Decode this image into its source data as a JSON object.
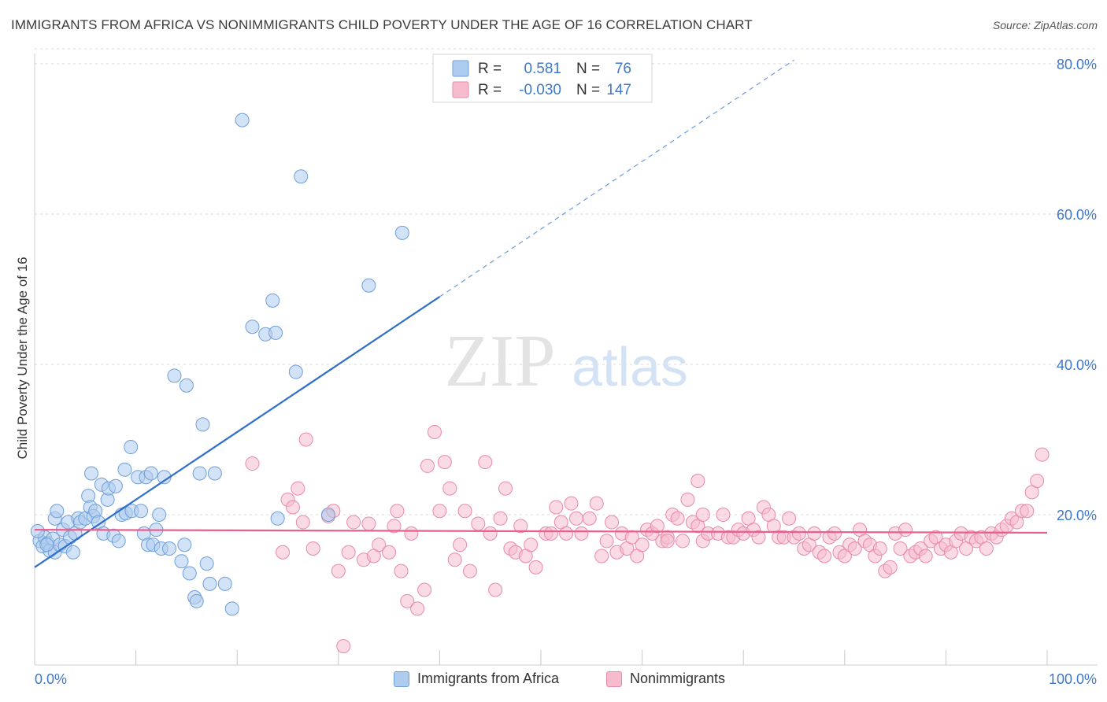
{
  "title": "IMMIGRANTS FROM AFRICA VS NONIMMIGRANTS CHILD POVERTY UNDER THE AGE OF 16 CORRELATION CHART",
  "source": "Source: ZipAtlas.com",
  "watermark": {
    "zip": "ZIP",
    "atlas": "atlas"
  },
  "legend": {
    "rows": [
      {
        "r_label": "R =",
        "r_value": "0.581",
        "n_label": "N =",
        "n_value": "76"
      },
      {
        "r_label": "R =",
        "r_value": "-0.030",
        "n_label": "N =",
        "n_value": "147"
      }
    ]
  },
  "bottom_legend": [
    "Immigrants from Africa",
    "Nonimmigrants"
  ],
  "colors": {
    "blue_fill": "#aeccf0",
    "blue_stroke": "#6f9fd6",
    "blue_line": "#2f6fcc",
    "pink_fill": "#f6bccd",
    "pink_stroke": "#e98aa8",
    "pink_line": "#e8608e",
    "tick_label": "#3f78c8",
    "grid": "#d8d8d8"
  },
  "chart_data": {
    "type": "scatter",
    "title": "IMMIGRANTS FROM AFRICA VS NONIMMIGRANTS CHILD POVERTY UNDER THE AGE OF 16 CORRELATION CHART",
    "xlabel": "",
    "ylabel": "Child Poverty Under the Age of 16",
    "xlim": [
      0,
      100
    ],
    "ylim": [
      0,
      85
    ],
    "x_tick_labels": [
      "0.0%",
      "100.0%"
    ],
    "y_ticks": [
      20,
      40,
      60,
      80
    ],
    "y_tick_labels": [
      "20.0%",
      "40.0%",
      "60.0%",
      "80.0%"
    ],
    "grid": "horizontal dashed",
    "legend_position": "top-center",
    "series": [
      {
        "name": "Immigrants from Africa",
        "color": "blue",
        "r": 0.581,
        "n": 76,
        "trend": {
          "x0": 0,
          "y0": 13.0,
          "x1": 40,
          "y1": 49.0,
          "dashed_to_x": 75
        },
        "points": [
          [
            0.5,
            16.5
          ],
          [
            0.8,
            15.8
          ],
          [
            1.0,
            17.0
          ],
          [
            1.3,
            16.2
          ],
          [
            1.5,
            15.2
          ],
          [
            1.8,
            16.8
          ],
          [
            2.0,
            15.0
          ],
          [
            2.0,
            19.5
          ],
          [
            2.2,
            20.5
          ],
          [
            2.5,
            16.0
          ],
          [
            2.8,
            18.0
          ],
          [
            3.0,
            15.8
          ],
          [
            3.3,
            19.0
          ],
          [
            3.5,
            17.0
          ],
          [
            3.8,
            15.0
          ],
          [
            4.0,
            17.5
          ],
          [
            4.3,
            19.5
          ],
          [
            4.5,
            19.0
          ],
          [
            5.0,
            19.5
          ],
          [
            5.3,
            22.5
          ],
          [
            5.5,
            21.0
          ],
          [
            5.6,
            25.5
          ],
          [
            5.8,
            19.8
          ],
          [
            6.0,
            20.5
          ],
          [
            6.3,
            19.0
          ],
          [
            6.6,
            24.0
          ],
          [
            6.8,
            17.5
          ],
          [
            7.2,
            22.0
          ],
          [
            7.3,
            23.5
          ],
          [
            7.8,
            17.2
          ],
          [
            8.0,
            23.8
          ],
          [
            8.3,
            16.5
          ],
          [
            8.6,
            20.0
          ],
          [
            8.9,
            26.0
          ],
          [
            9.0,
            20.2
          ],
          [
            9.5,
            29.0
          ],
          [
            9.6,
            20.5
          ],
          [
            10.2,
            25.0
          ],
          [
            10.5,
            20.5
          ],
          [
            10.8,
            17.5
          ],
          [
            11.0,
            25.0
          ],
          [
            11.2,
            16.0
          ],
          [
            11.5,
            25.5
          ],
          [
            11.7,
            16.0
          ],
          [
            12.0,
            18.0
          ],
          [
            12.3,
            20.0
          ],
          [
            12.5,
            15.5
          ],
          [
            12.8,
            25.0
          ],
          [
            13.3,
            15.5
          ],
          [
            13.8,
            38.5
          ],
          [
            14.5,
            13.8
          ],
          [
            14.8,
            16.0
          ],
          [
            15.0,
            37.2
          ],
          [
            15.3,
            12.2
          ],
          [
            15.8,
            9.0
          ],
          [
            16.0,
            8.5
          ],
          [
            16.3,
            25.5
          ],
          [
            16.6,
            32.0
          ],
          [
            17.0,
            13.5
          ],
          [
            17.3,
            10.8
          ],
          [
            17.8,
            25.5
          ],
          [
            18.8,
            10.8
          ],
          [
            19.5,
            7.5
          ],
          [
            20.5,
            72.5
          ],
          [
            21.5,
            45.0
          ],
          [
            22.8,
            44.0
          ],
          [
            23.5,
            48.5
          ],
          [
            23.8,
            44.2
          ],
          [
            24.0,
            19.5
          ],
          [
            25.8,
            39.0
          ],
          [
            26.3,
            65.0
          ],
          [
            33.0,
            50.5
          ],
          [
            36.3,
            57.5
          ],
          [
            1.2,
            16.0
          ],
          [
            0.3,
            17.8
          ],
          [
            29.0,
            20.0
          ]
        ]
      },
      {
        "name": "Nonimmigrants",
        "color": "pink",
        "r": -0.03,
        "n": 147,
        "trend": {
          "x0": 0,
          "y0": 18.0,
          "x1": 100,
          "y1": 17.6
        },
        "points": [
          [
            21.5,
            26.8
          ],
          [
            24.5,
            15.0
          ],
          [
            25.0,
            22.0
          ],
          [
            25.5,
            21.0
          ],
          [
            26.0,
            23.5
          ],
          [
            26.5,
            19.0
          ],
          [
            26.8,
            30.0
          ],
          [
            27.5,
            15.5
          ],
          [
            29.0,
            19.8
          ],
          [
            29.5,
            20.5
          ],
          [
            30.0,
            12.5
          ],
          [
            30.5,
            2.5
          ],
          [
            31.0,
            15.0
          ],
          [
            31.5,
            19.0
          ],
          [
            32.5,
            14.0
          ],
          [
            33.0,
            18.8
          ],
          [
            33.5,
            14.5
          ],
          [
            34.0,
            16.0
          ],
          [
            35.0,
            15.0
          ],
          [
            35.5,
            18.5
          ],
          [
            35.8,
            20.5
          ],
          [
            36.2,
            12.5
          ],
          [
            36.8,
            8.5
          ],
          [
            37.2,
            17.5
          ],
          [
            37.8,
            7.5
          ],
          [
            38.5,
            10.0
          ],
          [
            38.8,
            26.5
          ],
          [
            39.5,
            31.0
          ],
          [
            40.0,
            20.5
          ],
          [
            40.5,
            27.0
          ],
          [
            41.0,
            23.5
          ],
          [
            41.5,
            14.0
          ],
          [
            42.0,
            16.0
          ],
          [
            42.5,
            20.5
          ],
          [
            43.0,
            12.5
          ],
          [
            43.8,
            18.8
          ],
          [
            44.5,
            27.0
          ],
          [
            45.0,
            17.5
          ],
          [
            45.5,
            10.0
          ],
          [
            46.0,
            19.5
          ],
          [
            46.5,
            23.5
          ],
          [
            47.0,
            15.5
          ],
          [
            47.5,
            15.0
          ],
          [
            48.0,
            18.5
          ],
          [
            48.5,
            14.5
          ],
          [
            49.0,
            16.0
          ],
          [
            49.5,
            13.0
          ],
          [
            50.5,
            17.5
          ],
          [
            51.0,
            17.5
          ],
          [
            51.5,
            21.0
          ],
          [
            52.0,
            19.0
          ],
          [
            52.5,
            17.5
          ],
          [
            53.0,
            21.5
          ],
          [
            53.5,
            19.5
          ],
          [
            54.0,
            17.5
          ],
          [
            54.8,
            19.5
          ],
          [
            55.5,
            21.5
          ],
          [
            56.0,
            14.5
          ],
          [
            56.5,
            16.5
          ],
          [
            57.0,
            19.0
          ],
          [
            57.5,
            15.0
          ],
          [
            58.0,
            17.5
          ],
          [
            58.5,
            15.5
          ],
          [
            59.0,
            17.0
          ],
          [
            59.5,
            14.5
          ],
          [
            60.0,
            16.0
          ],
          [
            60.5,
            18.0
          ],
          [
            61.0,
            17.5
          ],
          [
            61.5,
            18.5
          ],
          [
            62.0,
            16.5
          ],
          [
            62.5,
            17.0
          ],
          [
            63.0,
            20.0
          ],
          [
            63.5,
            19.5
          ],
          [
            64.0,
            16.5
          ],
          [
            64.5,
            22.0
          ],
          [
            65.0,
            19.0
          ],
          [
            65.5,
            18.5
          ],
          [
            66.0,
            16.5
          ],
          [
            66.5,
            17.5
          ],
          [
            67.5,
            17.5
          ],
          [
            68.0,
            20.0
          ],
          [
            68.5,
            17.0
          ],
          [
            69.0,
            17.0
          ],
          [
            69.5,
            18.0
          ],
          [
            70.0,
            17.5
          ],
          [
            70.5,
            19.5
          ],
          [
            71.0,
            18.0
          ],
          [
            71.5,
            17.0
          ],
          [
            72.0,
            21.0
          ],
          [
            72.5,
            20.0
          ],
          [
            73.0,
            18.5
          ],
          [
            73.5,
            17.0
          ],
          [
            74.0,
            17.0
          ],
          [
            74.5,
            19.5
          ],
          [
            75.0,
            17.0
          ],
          [
            75.5,
            17.5
          ],
          [
            76.0,
            15.5
          ],
          [
            76.5,
            16.0
          ],
          [
            77.0,
            17.5
          ],
          [
            77.5,
            15.0
          ],
          [
            78.0,
            14.5
          ],
          [
            78.5,
            17.0
          ],
          [
            79.0,
            17.5
          ],
          [
            79.5,
            15.0
          ],
          [
            80.0,
            14.5
          ],
          [
            80.5,
            16.0
          ],
          [
            81.0,
            15.5
          ],
          [
            81.5,
            18.0
          ],
          [
            82.0,
            16.5
          ],
          [
            82.5,
            16.0
          ],
          [
            83.0,
            14.5
          ],
          [
            83.5,
            15.5
          ],
          [
            84.0,
            12.5
          ],
          [
            84.5,
            13.0
          ],
          [
            85.0,
            17.5
          ],
          [
            85.5,
            15.5
          ],
          [
            86.0,
            18.0
          ],
          [
            86.5,
            14.5
          ],
          [
            87.0,
            15.0
          ],
          [
            87.5,
            15.5
          ],
          [
            88.0,
            14.5
          ],
          [
            88.5,
            16.5
          ],
          [
            89.0,
            17.0
          ],
          [
            89.5,
            15.5
          ],
          [
            90.0,
            16.0
          ],
          [
            90.5,
            15.0
          ],
          [
            91.0,
            16.5
          ],
          [
            91.5,
            17.5
          ],
          [
            92.0,
            15.5
          ],
          [
            92.5,
            17.0
          ],
          [
            93.0,
            16.5
          ],
          [
            93.5,
            17.0
          ],
          [
            94.0,
            15.5
          ],
          [
            94.5,
            17.5
          ],
          [
            95.0,
            17.0
          ],
          [
            95.5,
            18.0
          ],
          [
            96.0,
            18.5
          ],
          [
            96.5,
            19.5
          ],
          [
            97.0,
            19.0
          ],
          [
            97.5,
            20.5
          ],
          [
            98.0,
            20.5
          ],
          [
            98.5,
            23.0
          ],
          [
            99.0,
            24.5
          ],
          [
            99.5,
            28.0
          ],
          [
            65.5,
            24.5
          ],
          [
            66.0,
            20.0
          ],
          [
            62.5,
            16.5
          ]
        ]
      }
    ]
  }
}
